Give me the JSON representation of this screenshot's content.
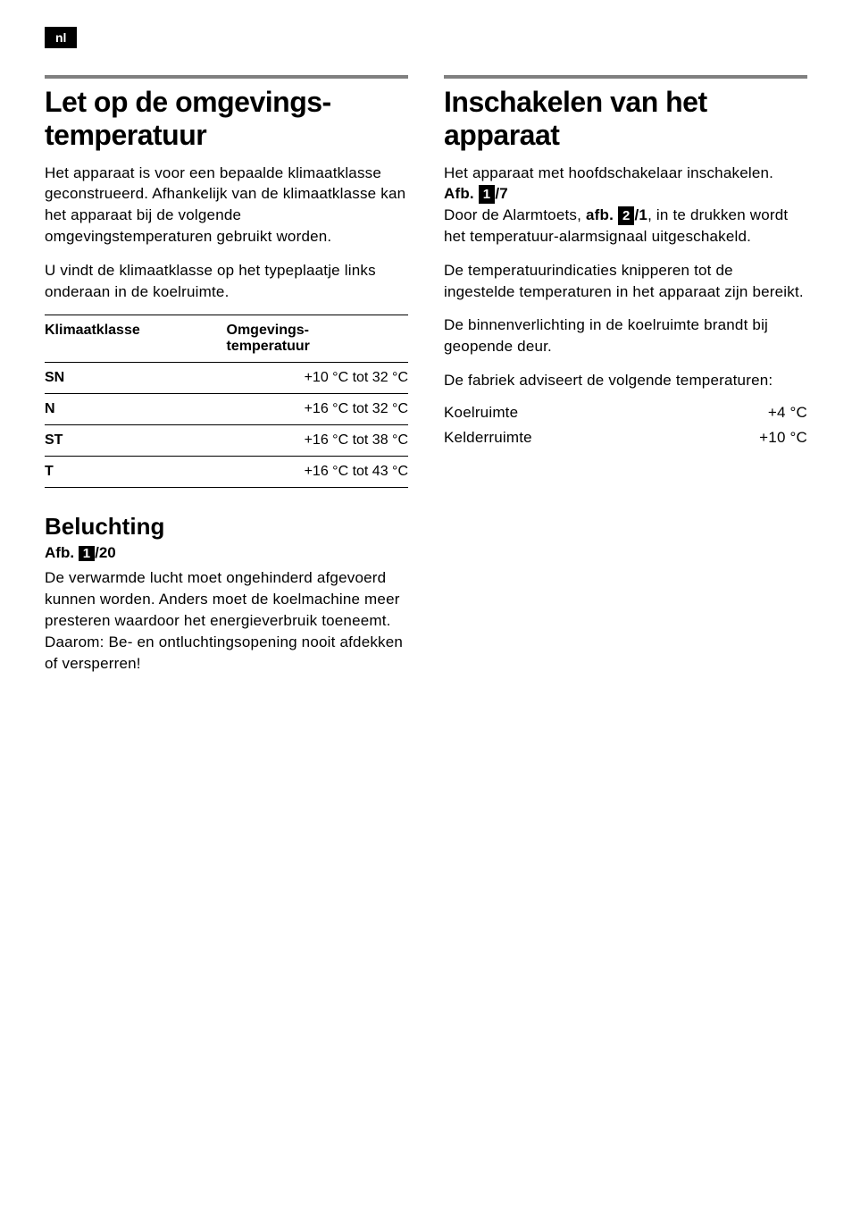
{
  "lang_badge": "nl",
  "left": {
    "h1": "Let op de omgevings­temperatuur",
    "p1": "Het apparaat is voor een bepaalde klimaatklasse geconstrueerd. Afhankelijk van de klimaatklasse kan het apparaat bij de volgende omgevingstemperaturen gebruikt worden.",
    "p2": "U vindt de klimaatklasse op het type­plaatje links onderaan in de koelruimte.",
    "table": {
      "col1": "Klimaatklasse",
      "col2_line1": "Omgevings-",
      "col2_line2": "temperatuur",
      "rows": [
        {
          "class": "SN",
          "range": "+10 °C tot 32 °C"
        },
        {
          "class": "N",
          "range": "+16 °C tot 32 °C"
        },
        {
          "class": "ST",
          "range": "+16 °C tot 38 °C"
        },
        {
          "class": "T",
          "range": "+16 °C tot 43 °C"
        }
      ]
    },
    "beluchting": {
      "h2": "Beluchting",
      "fig_label": "Afb.",
      "fig_num": "1",
      "fig_suffix": "/20",
      "body": "De verwarmde lucht moet ongehinderd afgevoerd kunnen worden. Anders moet de koelmachine meer presteren waardoor het energieverbruik toeneemt. Daarom: Be- en ontluchtingsopening nooit afdekken of versperren!"
    }
  },
  "right": {
    "h1": "Inschakelen van het apparaat",
    "p1_pre": "Het apparaat met hoofdschakelaar inschakelen. ",
    "p1_fig_label": "Afb.",
    "p1_fig_num": "1",
    "p1_fig_suffix": "/7",
    "p2_pre": "Door de Alarmtoets, ",
    "p2_fig_label": "afb.",
    "p2_fig_num": "2",
    "p2_fig_suffix": "/1",
    "p2_post": ", in te drukken wordt het temperatuur-alarmsignaal uitgeschakeld.",
    "p3": "De temperatuurindicaties knipperen tot de ingestelde temperaturen in het apparaat zijn bereikt.",
    "p4": "De binnenverlichting in de koelruimte brandt bij geopende deur.",
    "p5": "De fabriek adviseert de volgende temperaturen:",
    "temps": [
      {
        "label": "Koelruimte",
        "value": "+4 °C"
      },
      {
        "label": "Kelderruimte",
        "value": "+10 °C"
      }
    ]
  },
  "colors": {
    "rule": "#808080",
    "badge_bg": "#000000",
    "badge_fg": "#ffffff",
    "text": "#000000",
    "bg": "#ffffff"
  }
}
